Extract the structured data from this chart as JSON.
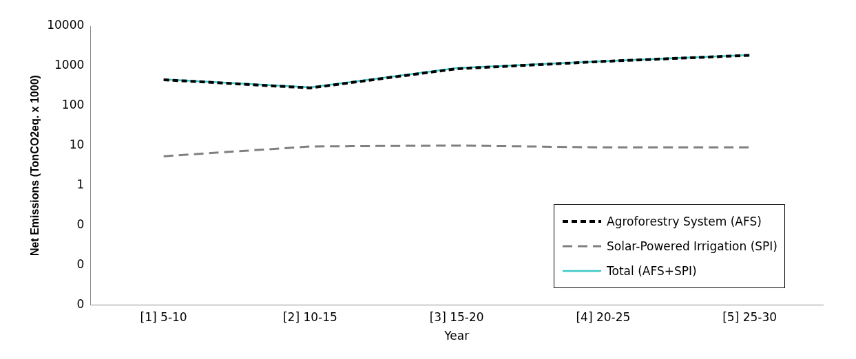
{
  "chart_data": {
    "type": "line",
    "xlabel": "Year",
    "ylabel": "Net Emissions (TonCO2eq. x 1000)",
    "categories": [
      "[1] 5-10",
      "[2] 10-15",
      "[3] 15-20",
      "[4] 20-25",
      "[5] 25-30"
    ],
    "log": "y",
    "ylim": [
      0.001,
      10000
    ],
    "yticks": [
      {
        "value": 0.001,
        "label": "0"
      },
      {
        "value": 0.01,
        "label": "0"
      },
      {
        "value": 0.1,
        "label": "0"
      },
      1,
      10,
      100,
      1000,
      10000
    ],
    "grid": false,
    "legend": "bottom right",
    "marker": "none",
    "series": [
      {
        "name": "Agroforestry System (AFS)",
        "color": "#000000",
        "line_style": "dashed",
        "values": [
          450,
          280,
          850,
          1300,
          1850
        ]
      },
      {
        "name": "Solar-Powered Irrigation (SPI)",
        "color": "#808080",
        "line_style": "dashed",
        "values": [
          5.4,
          9.5,
          10,
          9,
          9
        ]
      },
      {
        "name": "Total (AFS+SPI)",
        "color": "#3cc8c8",
        "line_style": "solid",
        "values": [
          460,
          290,
          880,
          1320,
          1880
        ]
      }
    ]
  }
}
